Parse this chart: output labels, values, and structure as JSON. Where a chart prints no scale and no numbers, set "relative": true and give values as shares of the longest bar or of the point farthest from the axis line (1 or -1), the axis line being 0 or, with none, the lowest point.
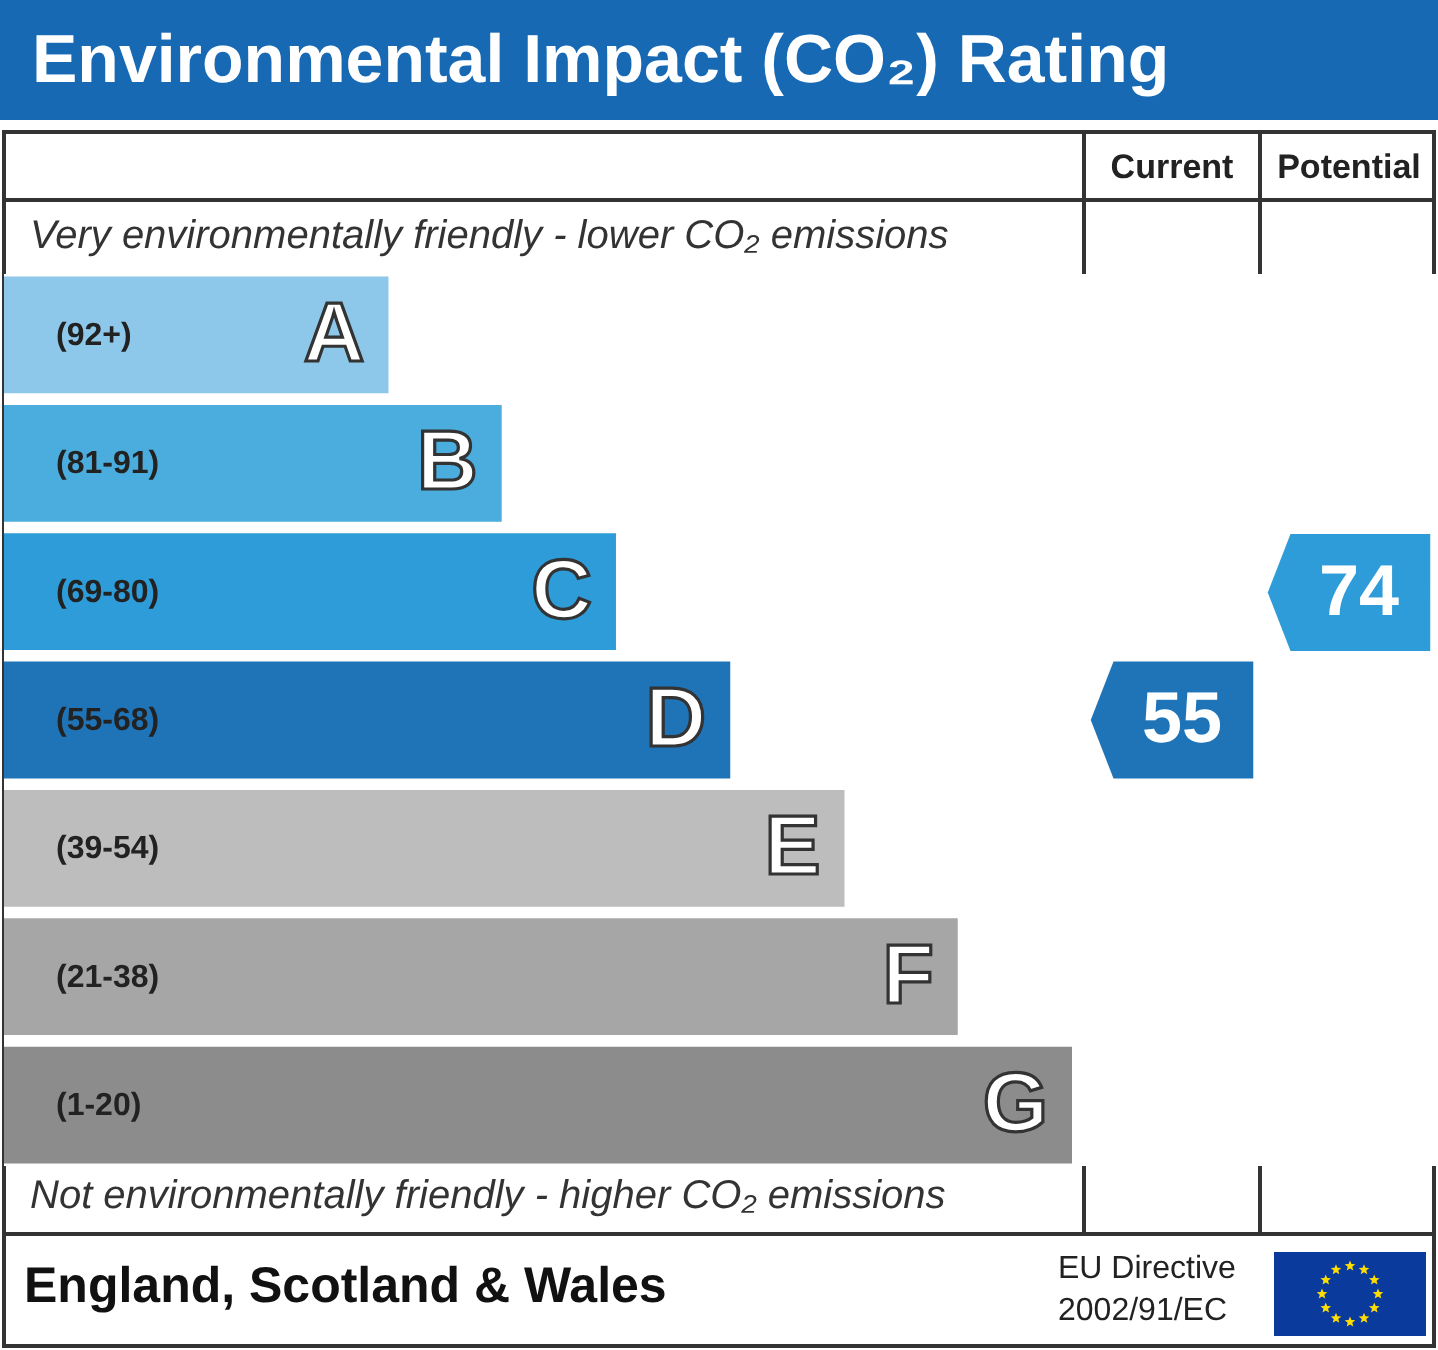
{
  "chart_data": {
    "type": "bar",
    "orientation": "horizontal",
    "relative": true,
    "title": "Environmental Impact (CO₂) Rating",
    "categories": [
      "A",
      "B",
      "C",
      "D",
      "E",
      "F",
      "G"
    ],
    "values": [
      0.36,
      0.466,
      0.573,
      0.68,
      0.787,
      0.893,
      1
    ],
    "colors": [
      "#8dc8ea",
      "#4badde",
      "#2d9cd8",
      "#1f74b8",
      "#bdbdbd",
      "#a6a6a6",
      "#8c8c8c"
    ],
    "annotations": [
      "(92+)",
      "(81-91)",
      "(69-80)",
      "(55-68)",
      "(39-54)",
      "(21-38)",
      "(1-20)",
      "Very environmentally friendly - lower CO₂ emissions",
      "Not environmentally friendly - higher CO₂ emissions",
      "Current",
      "Potential",
      "55",
      "74",
      "England, Scotland & Wales",
      "EU Directive",
      "2002/91/EC"
    ]
  }
}
